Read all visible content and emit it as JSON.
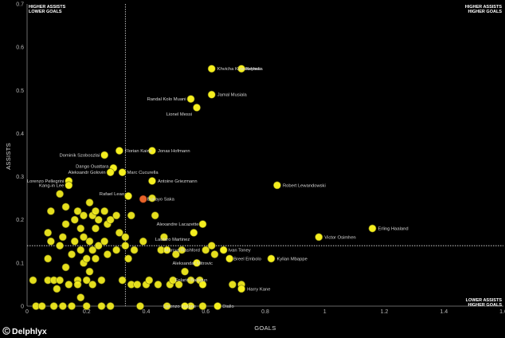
{
  "chart_data": {
    "type": "scatter",
    "xlabel": "GOALS",
    "ylabel": "ASSISTS",
    "xlim": [
      0,
      1.6
    ],
    "ylim": [
      0,
      0.7
    ],
    "x_ticks": [
      "0",
      "0.2",
      "0.4",
      "0.6",
      "0.8",
      "1",
      "1.2",
      "1.4",
      "1.6"
    ],
    "y_ticks": [
      "0",
      "0.1",
      "0.2",
      "0.3",
      "0.4",
      "0.5",
      "0.6",
      "0.7"
    ],
    "grid": false,
    "reference_lines": {
      "x": 0.33,
      "y": 0.14
    },
    "quadrants": {
      "top_left": [
        "HIGHER ASSISTS",
        "LOWER GOALS"
      ],
      "top_right": [
        "HIGHER ASSISTS",
        "HIGHER GOALS"
      ],
      "bottom_right": [
        "LOWER ASSISTS",
        "HIGHER GOALS"
      ]
    },
    "marker_color": "#f5ef1f",
    "highlight_color": "#e8632a",
    "labeled_points": [
      {
        "name": "Khvicha Kvaratskhelia",
        "x": 0.62,
        "y": 0.55
      },
      {
        "name": "Neymar",
        "x": 0.72,
        "y": 0.55
      },
      {
        "name": "Jamal Musiala",
        "x": 0.62,
        "y": 0.49
      },
      {
        "name": "Randal Kolo Muani",
        "x": 0.55,
        "y": 0.48
      },
      {
        "name": "Lionel Messi",
        "x": 0.57,
        "y": 0.46
      },
      {
        "name": "Florian Kainz",
        "x": 0.31,
        "y": 0.36
      },
      {
        "name": "Jonas Hofmann",
        "x": 0.42,
        "y": 0.36
      },
      {
        "name": "Dominik Szoboszlai",
        "x": 0.26,
        "y": 0.35
      },
      {
        "name": "Dango Ouattara",
        "x": 0.29,
        "y": 0.32
      },
      {
        "name": "Aleksandr Golovin",
        "x": 0.28,
        "y": 0.31
      },
      {
        "name": "Marc Cucurella",
        "x": 0.32,
        "y": 0.31
      },
      {
        "name": "Antoine Griezmann",
        "x": 0.42,
        "y": 0.29
      },
      {
        "name": "Lorenzo Pellegrini",
        "x": 0.14,
        "y": 0.29
      },
      {
        "name": "Kang-in Lee",
        "x": 0.14,
        "y": 0.28
      },
      {
        "name": "Robert Lewandowski",
        "x": 0.84,
        "y": 0.28
      },
      {
        "name": "Rafael Leao",
        "x": 0.34,
        "y": 0.255
      },
      {
        "name": "Bukayo Saka",
        "x": 0.39,
        "y": 0.248,
        "highlight": true
      },
      {
        "name": "Alexandre Lacazette",
        "x": 0.59,
        "y": 0.19
      },
      {
        "name": "Erling Haaland",
        "x": 1.16,
        "y": 0.18
      },
      {
        "name": "Lautaro Martinez",
        "x": 0.56,
        "y": 0.17
      },
      {
        "name": "Victor Osimhen",
        "x": 0.98,
        "y": 0.16
      },
      {
        "name": "Marcus Rashford",
        "x": 0.47,
        "y": 0.13
      },
      {
        "name": "Ivan Toney",
        "x": 0.66,
        "y": 0.13
      },
      {
        "name": "Kylian Mbappe",
        "x": 0.82,
        "y": 0.11
      },
      {
        "name": "Breel Embolo",
        "x": 0.68,
        "y": 0.11
      },
      {
        "name": "Aleksandar Mitrovic",
        "x": 0.57,
        "y": 0.1
      },
      {
        "name": "Folarin Balogun",
        "x": 0.59,
        "y": 0.05
      },
      {
        "name": "Harry Kane",
        "x": 0.72,
        "y": 0.04
      },
      {
        "name": "Lorenzo Insigne",
        "x": 0.53,
        "y": 0.0
      },
      {
        "name": "Diallo",
        "x": 0.64,
        "y": 0.0
      }
    ],
    "unlabeled_points": [
      [
        0.02,
        0.06
      ],
      [
        0.03,
        0.0
      ],
      [
        0.05,
        0.0
      ],
      [
        0.07,
        0.06
      ],
      [
        0.07,
        0.11
      ],
      [
        0.07,
        0.17
      ],
      [
        0.08,
        0.15
      ],
      [
        0.08,
        0.22
      ],
      [
        0.09,
        0.0
      ],
      [
        0.09,
        0.06
      ],
      [
        0.1,
        0.04
      ],
      [
        0.11,
        0.26
      ],
      [
        0.11,
        0.14
      ],
      [
        0.11,
        0.06
      ],
      [
        0.12,
        0.16
      ],
      [
        0.12,
        0.0
      ],
      [
        0.13,
        0.23
      ],
      [
        0.13,
        0.09
      ],
      [
        0.13,
        0.19
      ],
      [
        0.14,
        0.05
      ],
      [
        0.15,
        0.12
      ],
      [
        0.15,
        0.0
      ],
      [
        0.16,
        0.2
      ],
      [
        0.16,
        0.15
      ],
      [
        0.17,
        0.22
      ],
      [
        0.17,
        0.06
      ],
      [
        0.17,
        0.05
      ],
      [
        0.18,
        0.13
      ],
      [
        0.18,
        0.18
      ],
      [
        0.18,
        0.02
      ],
      [
        0.19,
        0.21
      ],
      [
        0.19,
        0.1
      ],
      [
        0.19,
        0.16
      ],
      [
        0.2,
        0.11
      ],
      [
        0.2,
        0.06
      ],
      [
        0.2,
        0.0
      ],
      [
        0.21,
        0.24
      ],
      [
        0.21,
        0.15
      ],
      [
        0.21,
        0.08
      ],
      [
        0.22,
        0.21
      ],
      [
        0.22,
        0.13
      ],
      [
        0.22,
        0.05
      ],
      [
        0.23,
        0.22
      ],
      [
        0.23,
        0.11
      ],
      [
        0.23,
        0.18
      ],
      [
        0.24,
        0.2
      ],
      [
        0.24,
        0.14
      ],
      [
        0.25,
        0.06
      ],
      [
        0.25,
        0.0
      ],
      [
        0.26,
        0.15
      ],
      [
        0.26,
        0.22
      ],
      [
        0.27,
        0.19
      ],
      [
        0.27,
        0.12
      ],
      [
        0.28,
        0.0
      ],
      [
        0.28,
        0.2
      ],
      [
        0.3,
        0.21
      ],
      [
        0.3,
        0.13
      ],
      [
        0.31,
        0.17
      ],
      [
        0.32,
        0.06
      ],
      [
        0.33,
        0.14
      ],
      [
        0.33,
        0.16
      ],
      [
        0.34,
        0.11
      ],
      [
        0.35,
        0.05
      ],
      [
        0.35,
        0.21
      ],
      [
        0.36,
        0.13
      ],
      [
        0.37,
        0.05
      ],
      [
        0.38,
        0.0
      ],
      [
        0.39,
        0.15
      ],
      [
        0.4,
        0.05
      ],
      [
        0.41,
        0.06
      ],
      [
        0.42,
        0.25
      ],
      [
        0.43,
        0.21
      ],
      [
        0.44,
        0.05
      ],
      [
        0.45,
        0.13
      ],
      [
        0.46,
        0.16
      ],
      [
        0.47,
        0.0
      ],
      [
        0.48,
        0.05
      ],
      [
        0.49,
        0.06
      ],
      [
        0.5,
        0.12
      ],
      [
        0.51,
        0.05
      ],
      [
        0.52,
        0.13
      ],
      [
        0.53,
        0.08
      ],
      [
        0.55,
        0.06
      ],
      [
        0.55,
        0.0
      ],
      [
        0.58,
        0.06
      ],
      [
        0.59,
        0.0
      ],
      [
        0.6,
        0.13
      ],
      [
        0.62,
        0.14
      ],
      [
        0.63,
        0.12
      ],
      [
        0.69,
        0.05
      ],
      [
        0.72,
        0.05
      ]
    ]
  },
  "brand": {
    "name": "Delphlyx"
  }
}
